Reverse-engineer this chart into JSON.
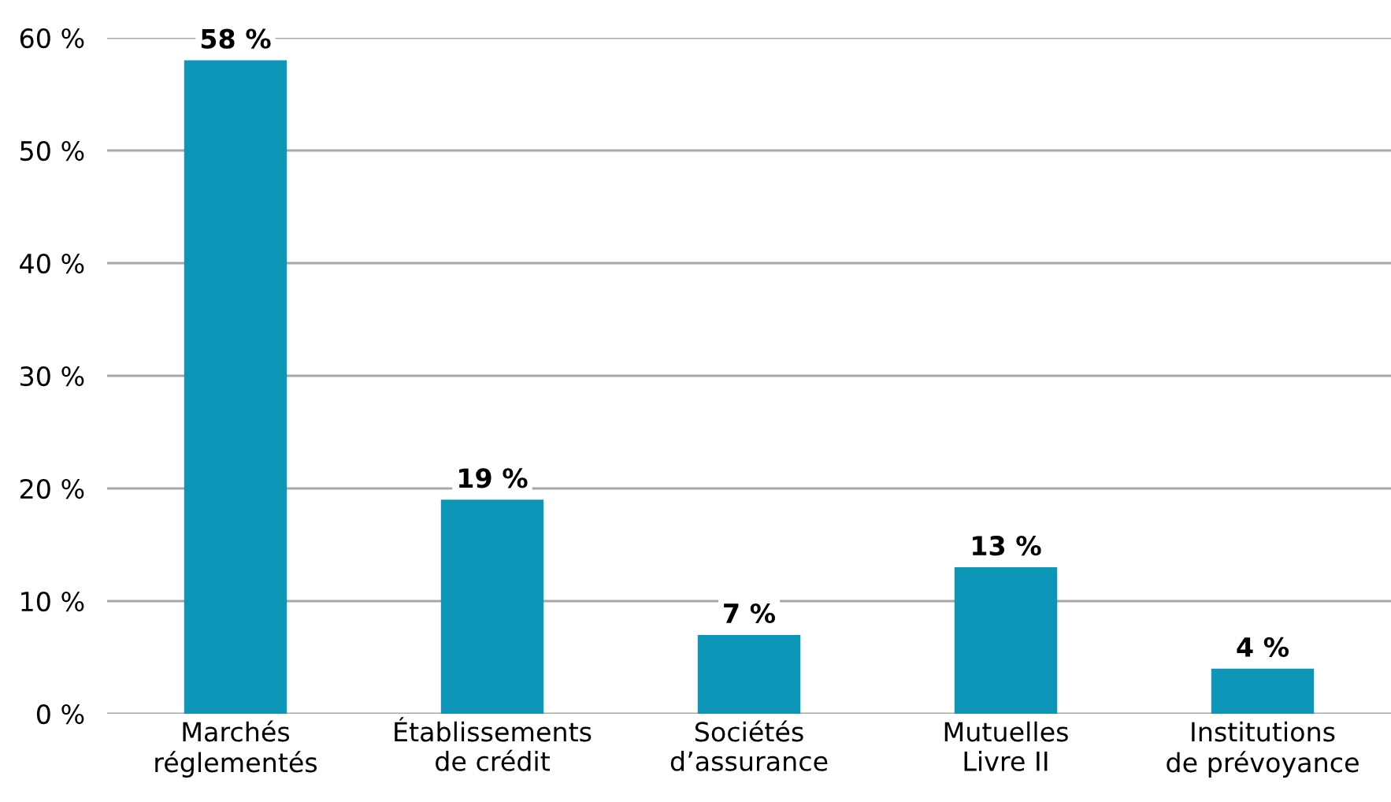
{
  "chart_data": {
    "type": "bar",
    "categories": [
      "Marchés\nréglementés",
      "Établissements\nde crédit",
      "Sociétés\nd’assurance",
      "Mutuelles\nLivre II",
      "Institutions\nde prévoyance"
    ],
    "values": [
      58,
      19,
      7,
      13,
      4
    ],
    "value_labels": [
      "58 %",
      "19 %",
      "7 %",
      "13 %",
      "4 %"
    ],
    "color": "#0e96b8",
    "ylim": [
      0,
      60
    ],
    "yticks": [
      {
        "value": 0,
        "label": "0 %"
      },
      {
        "value": 10,
        "label": "10 %"
      },
      {
        "value": 20,
        "label": "20 %"
      },
      {
        "value": 30,
        "label": "30 %"
      },
      {
        "value": 40,
        "label": "40 %"
      },
      {
        "value": 50,
        "label": "50 %"
      },
      {
        "value": 60,
        "label": "60 %"
      }
    ],
    "grid": "y"
  }
}
